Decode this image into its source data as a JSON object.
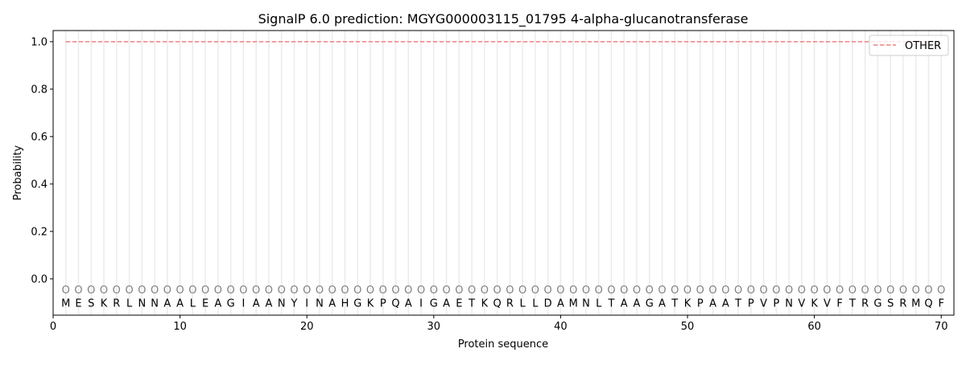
{
  "chart_data": {
    "type": "line",
    "title": "SignalP 6.0 prediction: MGYG000003115_01795 4-alpha-glucanotransferase",
    "xlabel": "Protein sequence",
    "ylabel": "Probability",
    "xlim": [
      0,
      71
    ],
    "ylim": [
      -0.153,
      1.047
    ],
    "xticks": [
      0,
      10,
      20,
      30,
      40,
      50,
      60,
      70
    ],
    "yticks": [
      0.0,
      0.2,
      0.4,
      0.6,
      0.8,
      1.0
    ],
    "ytick_labels": [
      "0.0",
      "0.2",
      "0.4",
      "0.6",
      "0.8",
      "1.0"
    ],
    "grid": "vertical lines at each residue",
    "legend_position": "top-right",
    "sequence": [
      "M",
      "E",
      "S",
      "K",
      "R",
      "L",
      "N",
      "N",
      "A",
      "A",
      "L",
      "E",
      "A",
      "G",
      "I",
      "A",
      "A",
      "N",
      "Y",
      "I",
      "N",
      "A",
      "H",
      "G",
      "K",
      "P",
      "Q",
      "A",
      "I",
      "G",
      "A",
      "E",
      "T",
      "K",
      "Q",
      "R",
      "L",
      "L",
      "D",
      "A",
      "M",
      "N",
      "L",
      "T",
      "A",
      "A",
      "G",
      "A",
      "T",
      "K",
      "P",
      "A",
      "A",
      "T",
      "P",
      "V",
      "P",
      "N",
      "V",
      "K",
      "V",
      "F",
      "T",
      "R",
      "G",
      "S",
      "R",
      "M",
      "Q",
      "F"
    ],
    "region_label": "O",
    "series": [
      {
        "name": "OTHER",
        "color": "#f08080",
        "style": "dashed",
        "x_range": [
          1,
          70
        ],
        "value": 1.0
      }
    ]
  }
}
